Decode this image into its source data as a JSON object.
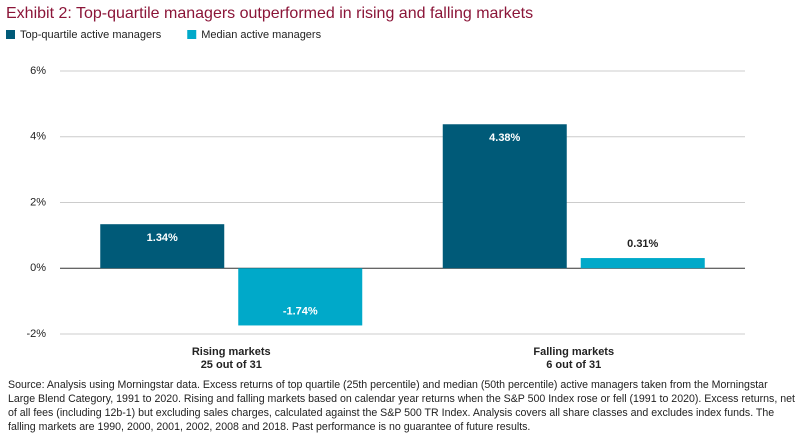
{
  "chart_data": {
    "type": "bar",
    "title": "Exhibit 2: Top-quartile managers outperformed in rising and falling markets",
    "categories": [
      "Rising markets",
      "Falling markets"
    ],
    "category_subtitles": [
      "25 out of 31",
      "6 out of 31"
    ],
    "series": [
      {
        "name": "Top-quartile active managers",
        "color": "#005a78",
        "values": [
          1.34,
          4.38
        ],
        "value_labels": [
          "1.34%",
          "4.38%"
        ]
      },
      {
        "name": "Median active managers",
        "color": "#00a9c9",
        "values": [
          -1.74,
          0.31
        ],
        "value_labels": [
          "-1.74%",
          "0.31%"
        ]
      }
    ],
    "ylim": [
      -2,
      6
    ],
    "yticks": [
      {
        "value": -2,
        "label": "-2%"
      },
      {
        "value": 0,
        "label": "0%"
      },
      {
        "value": 2,
        "label": "2%"
      },
      {
        "value": 4,
        "label": "4%"
      },
      {
        "value": 6,
        "label": "6%"
      }
    ],
    "grid": true,
    "source": "Source: Analysis using Morningstar data. Excess returns of  top quartile (25th percentile) and median (50th percentile) active managers taken from the Morningstar Large Blend Category, 1991 to 2020. Rising and falling markets based on calendar year returns when the S&P 500 Index rose or fell (1991 to 2020). Excess returns, net of all fees (including 12b-1) but excluding sales charges, calculated against the S&P 500 TR Index. Analysis covers all share classes and excludes index funds. The falling markets are 1990, 2000, 2001, 2002, 2008 and 2018. Past performance is no guarantee of future results."
  }
}
